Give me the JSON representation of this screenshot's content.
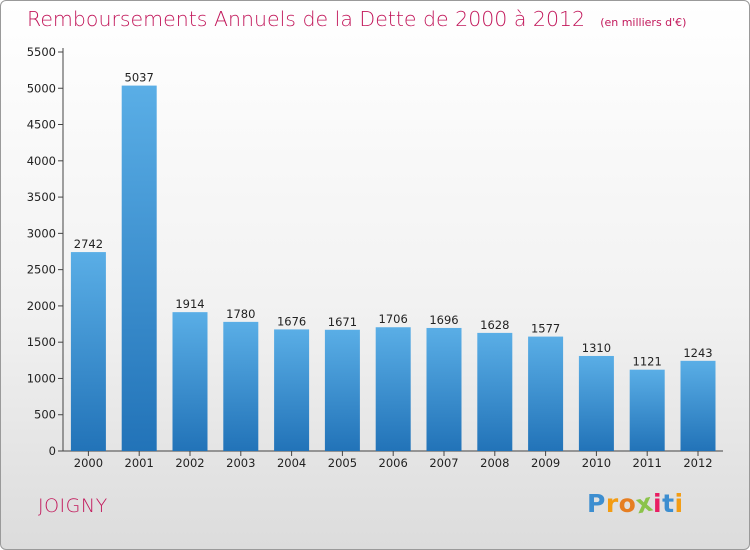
{
  "chart_data": {
    "type": "bar",
    "title": "Remboursements Annuels de la Dette de 2000 à 2012",
    "subtitle": "(en milliers d'€)",
    "categories": [
      "2000",
      "2001",
      "2002",
      "2003",
      "2004",
      "2005",
      "2006",
      "2007",
      "2008",
      "2009",
      "2010",
      "2011",
      "2012"
    ],
    "values": [
      2742,
      5037,
      1914,
      1780,
      1676,
      1671,
      1706,
      1696,
      1628,
      1577,
      1310,
      1121,
      1243
    ],
    "ylim": [
      0,
      5500
    ],
    "yticks": [
      0,
      500,
      1000,
      1500,
      2000,
      2500,
      3000,
      3500,
      4000,
      4500,
      5000,
      5500
    ],
    "grid": false,
    "colors": {
      "bar_top": "#5aaee6",
      "bar_bottom": "#2273b8",
      "title": "#c2185b"
    }
  },
  "location": "JOIGNY",
  "brand": {
    "text": "Proxiti",
    "letters": [
      {
        "ch": "P",
        "color": "#3d8ed0"
      },
      {
        "ch": "r",
        "color": "#f39c12"
      },
      {
        "ch": "o",
        "color": "#e67e22"
      },
      {
        "ch": "x",
        "color": "#8bc34a"
      },
      {
        "ch": "i",
        "color": "#e91e63"
      },
      {
        "ch": "t",
        "color": "#3d8ed0"
      },
      {
        "ch": "i",
        "color": "#f39c12"
      }
    ]
  }
}
